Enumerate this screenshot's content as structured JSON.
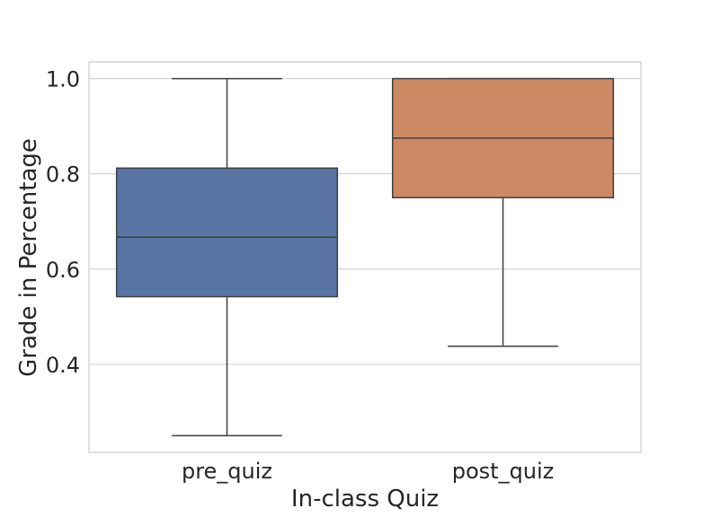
{
  "chart_data": {
    "type": "box",
    "title": "",
    "xlabel": "In-class Quiz",
    "ylabel": "Grade in Percentage",
    "ylim": [
      0.215,
      1.035
    ],
    "yticks": [
      0.4,
      0.6,
      0.8,
      1.0
    ],
    "ytick_labels": [
      "0.4",
      "0.6",
      "0.8",
      "1.0"
    ],
    "grid": true,
    "categories": [
      "pre_quiz",
      "post_quiz"
    ],
    "boxes": [
      {
        "category": "pre_quiz",
        "whisker_low": 0.25,
        "q1": 0.542,
        "median": 0.667,
        "q3": 0.812,
        "whisker_high": 1.0,
        "color": "#5875a4"
      },
      {
        "category": "post_quiz",
        "whisker_low": 0.438,
        "q1": 0.75,
        "median": 0.875,
        "q3": 1.0,
        "whisker_high": 1.0,
        "color": "#cc8963"
      }
    ]
  }
}
